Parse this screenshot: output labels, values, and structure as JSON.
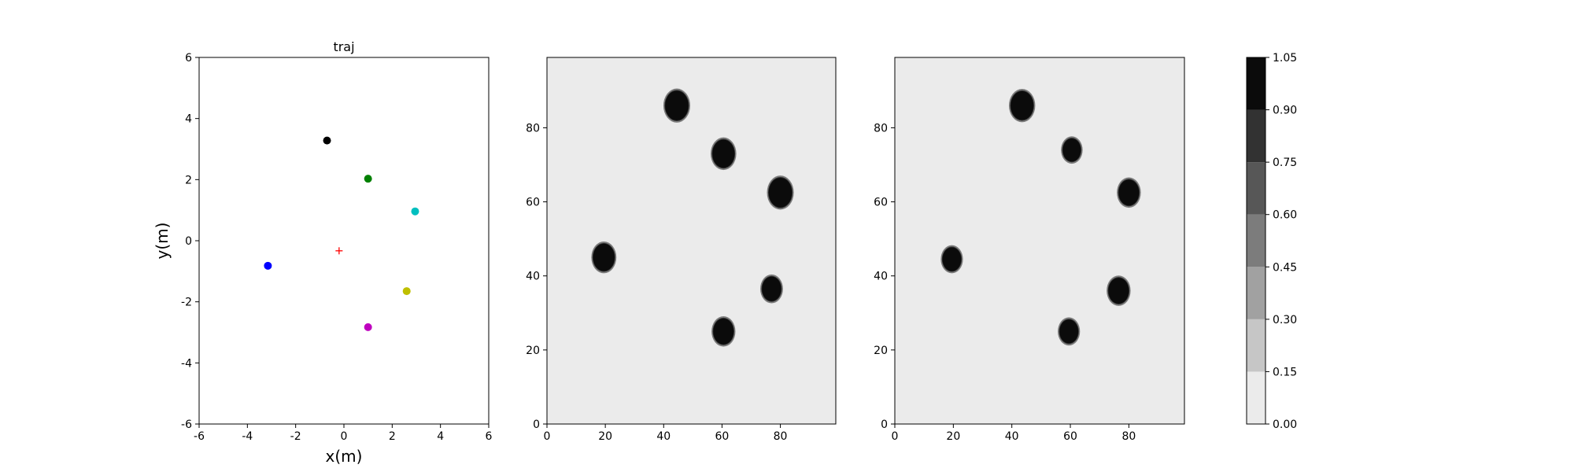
{
  "chart_data": [
    {
      "type": "scatter",
      "title": "traj",
      "xlabel": "x(m)",
      "ylabel": "y(m)",
      "xlim": [
        -6,
        6
      ],
      "ylim": [
        -6,
        6
      ],
      "xticks": [
        -6,
        -4,
        -2,
        0,
        2,
        4,
        6
      ],
      "yticks": [
        -6,
        -4,
        -2,
        0,
        2,
        4,
        6
      ],
      "grid": false,
      "points": [
        {
          "x": -0.7,
          "y": 3.28,
          "color": "#000000"
        },
        {
          "x": 1.0,
          "y": 2.03,
          "color": "#008000"
        },
        {
          "x": 2.95,
          "y": 0.96,
          "color": "#00bfbf"
        },
        {
          "x": -3.15,
          "y": -0.82,
          "color": "#0000ff"
        },
        {
          "x": 2.6,
          "y": -1.65,
          "color": "#bfbf00"
        },
        {
          "x": 1.0,
          "y": -2.83,
          "color": "#bf00bf"
        }
      ],
      "marker": {
        "x": -0.2,
        "y": -0.33,
        "symbol": "+",
        "color": "#ff0000"
      }
    },
    {
      "type": "heatmap",
      "xlim": [
        0,
        99
      ],
      "ylim": [
        0,
        99
      ],
      "xticks": [
        0,
        20,
        40,
        60,
        80
      ],
      "yticks": [
        0,
        20,
        40,
        60,
        80
      ],
      "background_value": 0.07,
      "blobs": [
        {
          "x": 44.5,
          "y": 86,
          "r": 4
        },
        {
          "x": 60.5,
          "y": 73,
          "r": 3.8
        },
        {
          "x": 80,
          "y": 62.5,
          "r": 4
        },
        {
          "x": 19.5,
          "y": 45,
          "r": 3.7
        },
        {
          "x": 77,
          "y": 36.5,
          "r": 3.3
        },
        {
          "x": 60.5,
          "y": 25,
          "r": 3.5
        }
      ]
    },
    {
      "type": "heatmap",
      "xlim": [
        0,
        99
      ],
      "ylim": [
        0,
        99
      ],
      "xticks": [
        0,
        20,
        40,
        60,
        80
      ],
      "yticks": [
        0,
        20,
        40,
        60,
        80
      ],
      "background_value": 0.07,
      "blobs": [
        {
          "x": 43.5,
          "y": 86,
          "r": 3.9
        },
        {
          "x": 60.5,
          "y": 74,
          "r": 3.1
        },
        {
          "x": 80,
          "y": 62.5,
          "r": 3.5
        },
        {
          "x": 19.5,
          "y": 44.5,
          "r": 3.2
        },
        {
          "x": 76.5,
          "y": 36,
          "r": 3.5
        },
        {
          "x": 59.5,
          "y": 25,
          "r": 3.2
        }
      ]
    }
  ],
  "colorbar": {
    "levels": [
      0.0,
      0.15,
      0.3,
      0.45,
      0.6,
      0.75,
      0.9,
      1.05
    ],
    "tick_labels": [
      "0.00",
      "0.15",
      "0.30",
      "0.45",
      "0.60",
      "0.75",
      "0.90",
      "1.05"
    ],
    "colors": [
      "#ebebeb",
      "#c6c6c6",
      "#a1a1a1",
      "#7c7c7c",
      "#575757",
      "#323232",
      "#0b0b0b"
    ]
  }
}
